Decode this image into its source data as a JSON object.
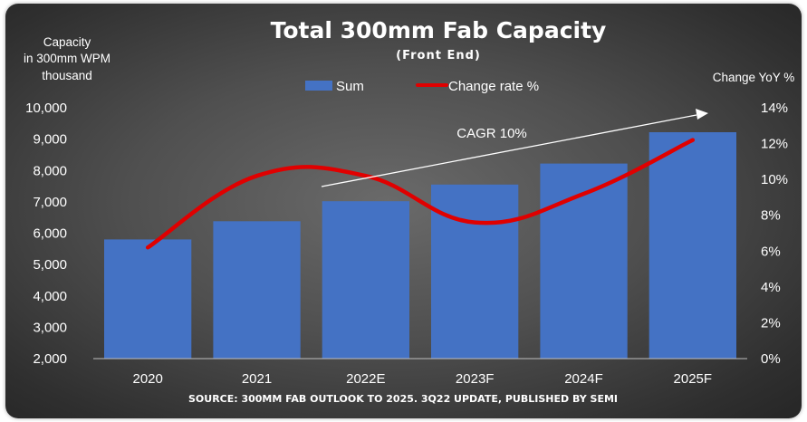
{
  "chart_data": {
    "type": "bar",
    "title": "Total 300mm Fab Capacity",
    "subtitle": "(Front End)",
    "ylabel_left": [
      "Capacity",
      "in 300mm WPM",
      "thousand"
    ],
    "ylabel_right": "Change YoY %",
    "categories": [
      "2020",
      "2021",
      "2022E",
      "2023F",
      "2024F",
      "2025F"
    ],
    "y_left_ticks": [
      "2,000",
      "3,000",
      "4,000",
      "5,000",
      "6,000",
      "7,000",
      "8,000",
      "9,000",
      "10,000"
    ],
    "y_right_ticks": [
      "0%",
      "2%",
      "4%",
      "6%",
      "8%",
      "10%",
      "12%",
      "14%"
    ],
    "ylim_left": [
      2000,
      10000
    ],
    "ylim_right": [
      0,
      14
    ],
    "legend_position": "top-center",
    "grid": false,
    "series": [
      {
        "name": "Sum",
        "type": "bar",
        "axis": "left",
        "color": "#4472C4",
        "values": [
          5800,
          6380,
          7020,
          7550,
          8220,
          9220
        ]
      },
      {
        "name": "Change rate %",
        "type": "line",
        "axis": "right",
        "color": "#E00000",
        "values": [
          6.2,
          10.2,
          10.2,
          7.6,
          9.2,
          12.2
        ]
      }
    ],
    "annotation": {
      "text": "CAGR 10%",
      "arrow_color": "#ffffff"
    },
    "source": "SOURCE: 300MM FAB OUTLOOK TO 2025. 3Q22 UPDATE, PUBLISHED BY SEMI"
  }
}
